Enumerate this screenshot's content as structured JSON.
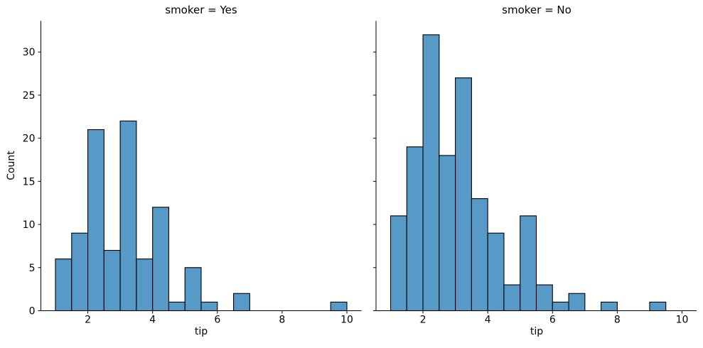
{
  "figure": {
    "background": "#ffffff",
    "axis_color": "#000000",
    "text_color": "#000000"
  },
  "chart_data": [
    {
      "type": "bar",
      "title": "smoker = Yes",
      "xlabel": "tip",
      "ylabel": "Count",
      "bin_start": 1.0,
      "bin_width": 0.5,
      "counts": [
        6,
        9,
        21,
        7,
        22,
        6,
        12,
        1,
        5,
        1,
        0,
        2,
        0,
        0,
        0,
        0,
        0,
        1
      ],
      "xticks": [
        2,
        4,
        6,
        8,
        10
      ],
      "yticks": [
        0,
        5,
        10,
        15,
        20,
        25,
        30
      ],
      "xlim": [
        0.55,
        10.45
      ],
      "ylim": [
        0,
        33.6
      ],
      "show_ytick_labels": true,
      "bar_fill": "#5799c7",
      "bar_edge": "#000000",
      "grid": false,
      "legend": "none"
    },
    {
      "type": "bar",
      "title": "smoker = No",
      "xlabel": "tip",
      "ylabel": "",
      "bin_start": 1.0,
      "bin_width": 0.5,
      "counts": [
        11,
        19,
        32,
        18,
        27,
        13,
        9,
        3,
        11,
        3,
        1,
        2,
        0,
        1,
        0,
        0,
        1
      ],
      "xticks": [
        2,
        4,
        6,
        8,
        10
      ],
      "yticks": [
        0,
        5,
        10,
        15,
        20,
        25,
        30
      ],
      "xlim": [
        0.55,
        10.45
      ],
      "ylim": [
        0,
        33.6
      ],
      "show_ytick_labels": false,
      "bar_fill": "#5799c7",
      "bar_edge": "#000000",
      "grid": false,
      "legend": "none"
    }
  ]
}
